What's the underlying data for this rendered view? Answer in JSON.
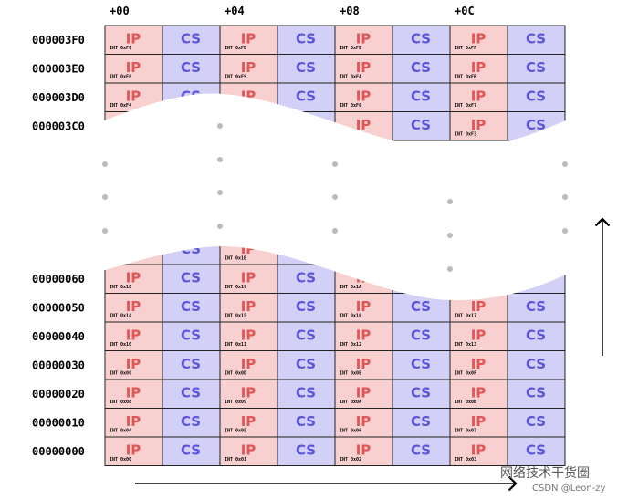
{
  "columns": [
    "+00",
    "+04",
    "+08",
    "+0C"
  ],
  "cell_labels": {
    "ip": "IP",
    "cs": "CS"
  },
  "top_rows": [
    {
      "address": "000003F0",
      "ints": [
        "INT 0xFC",
        "INT 0xFD",
        "INT 0xFE",
        "INT 0xFF"
      ]
    },
    {
      "address": "000003E0",
      "ints": [
        "INT 0xF8",
        "INT 0xF9",
        "INT 0xFA",
        "INT 0xFB"
      ]
    },
    {
      "address": "000003D0",
      "ints": [
        "INT 0xF4",
        null,
        "INT 0xF6",
        "INT 0xF7"
      ]
    },
    {
      "address": "000003C0",
      "ints": [
        null,
        null,
        null,
        "INT 0xF3"
      ]
    }
  ],
  "partial_row": {
    "ints": [
      null,
      "INT 0x1B",
      null,
      null
    ]
  },
  "bottom_rows": [
    {
      "address": "00000060",
      "ints": [
        "INT 0x18",
        "INT 0x19",
        "INT 0x1A",
        null
      ]
    },
    {
      "address": "00000050",
      "ints": [
        "INT 0x14",
        "INT 0x15",
        "INT 0x16",
        "INT 0x17"
      ]
    },
    {
      "address": "00000040",
      "ints": [
        "INT 0x10",
        "INT 0x11",
        "INT 0x12",
        "INT 0x13"
      ]
    },
    {
      "address": "00000030",
      "ints": [
        "INT 0x0C",
        "INT 0x0D",
        "INT 0x0E",
        "INT 0x0F"
      ]
    },
    {
      "address": "00000020",
      "ints": [
        "INT 0x08",
        "INT 0x09",
        "INT 0x0A",
        "INT 0x0B"
      ]
    },
    {
      "address": "00000010",
      "ints": [
        "INT 0x04",
        "INT 0x05",
        "INT 0x06",
        "INT 0x07"
      ]
    },
    {
      "address": "00000000",
      "ints": [
        "INT 0x00",
        "INT 0x01",
        "INT 0x02",
        "INT 0x03"
      ]
    }
  ],
  "watermark": {
    "title": "网络技术干货圈",
    "credit": "CSDN @Leon-zy"
  }
}
